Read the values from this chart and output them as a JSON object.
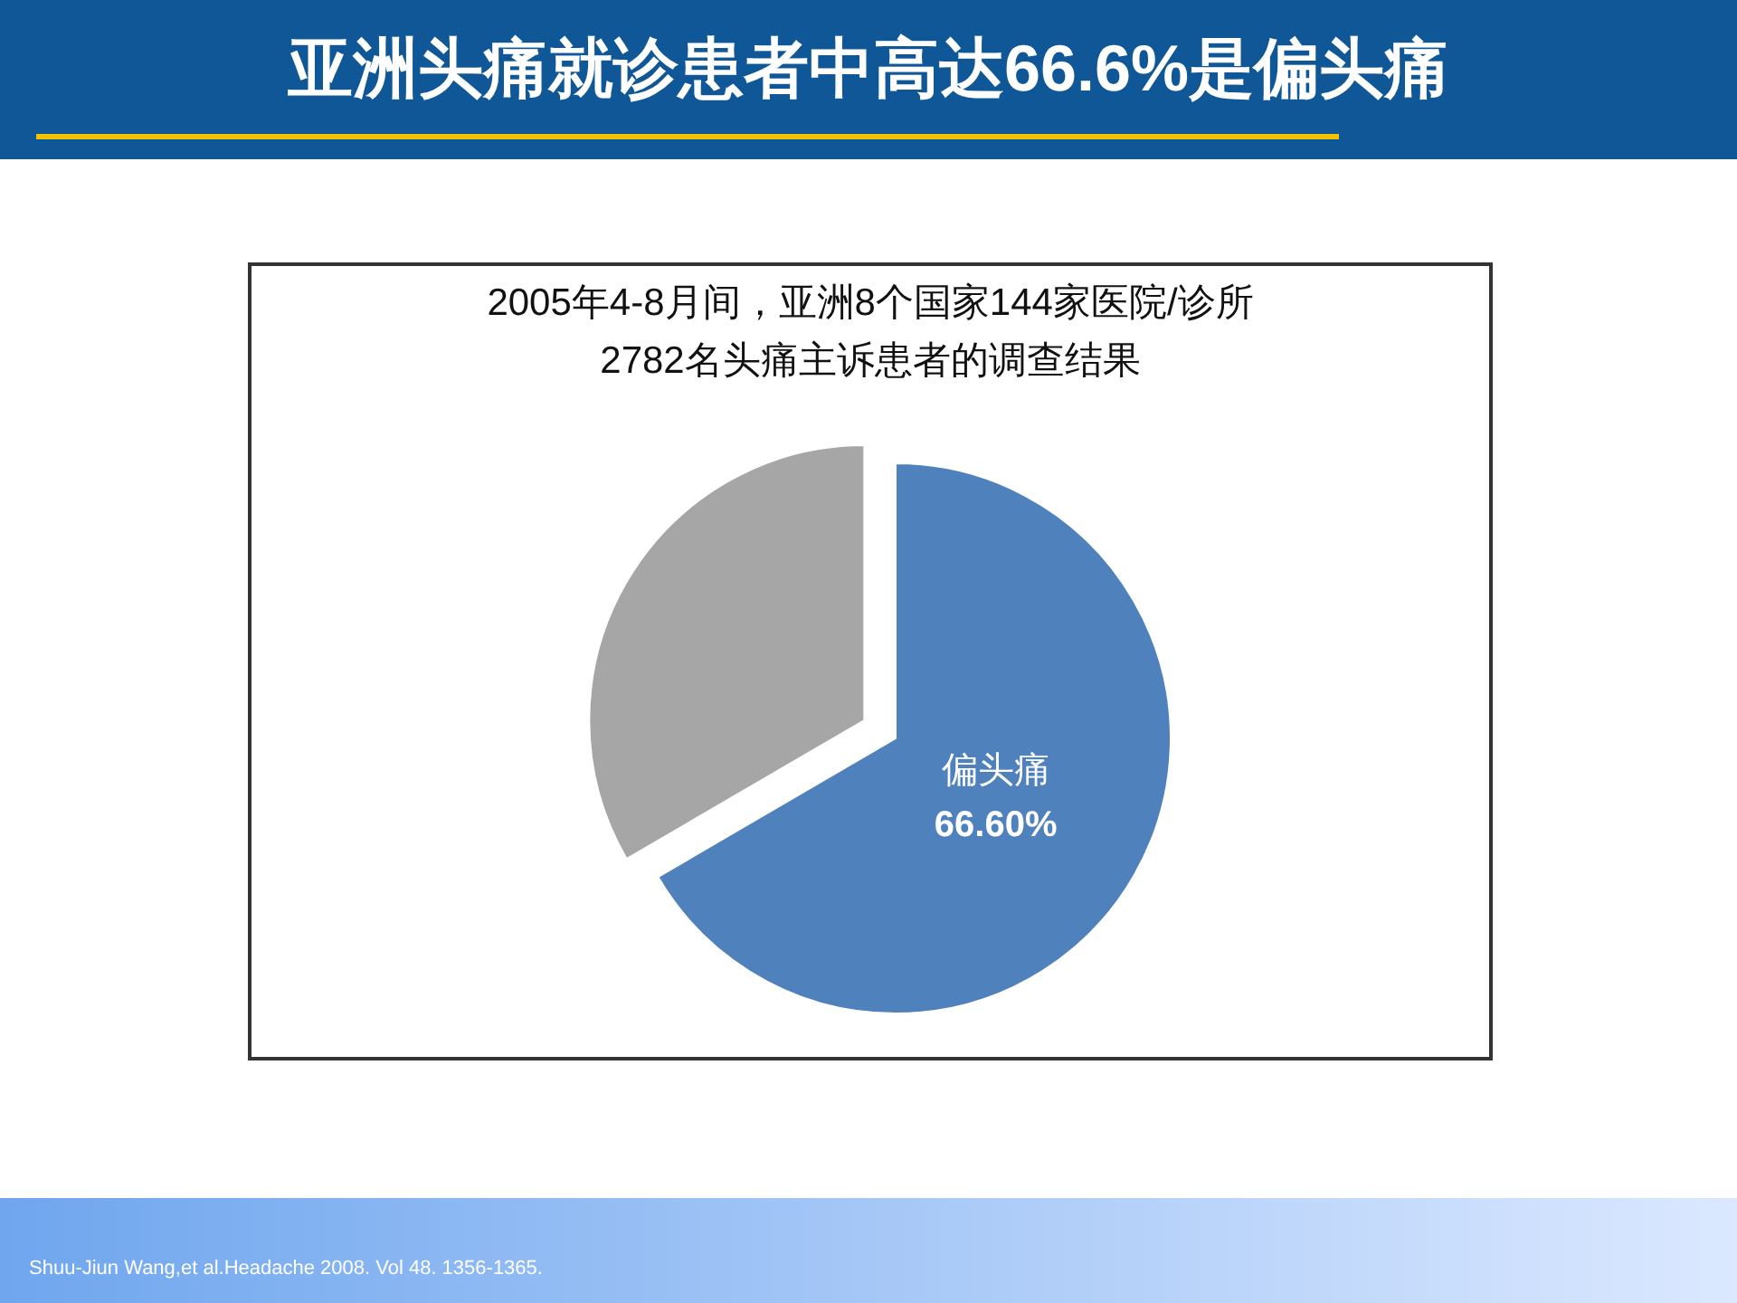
{
  "chart_data": {
    "type": "pie",
    "title": "亚洲头痛就诊患者中高达66.6%是偏头痛",
    "subtitle": "2005年4-8月间，亚洲8个国家144家医院/诊所\n2782名头痛主诉患者的调查结果",
    "categories": [
      "偏头痛",
      null
    ],
    "values": [
      66.6,
      33.4
    ],
    "colors": [
      "#4f81bd",
      "#a6a6a6"
    ],
    "value_labels": [
      "66.60%",
      null
    ],
    "annotations": [
      "Shuu-Jiun Wang,et al.Headache 2008. Vol 48. 1356-1365."
    ]
  }
}
